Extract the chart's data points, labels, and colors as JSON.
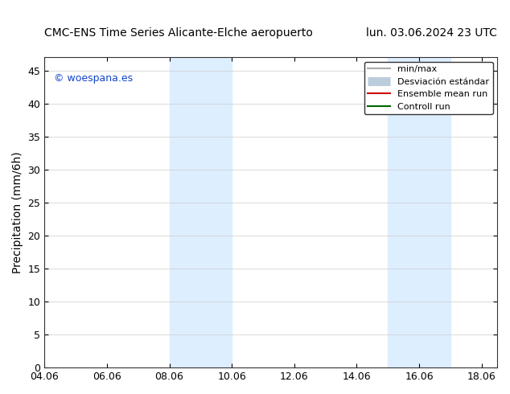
{
  "title_left": "CMC-ENS Time Series Alicante-Elche aeropuerto",
  "title_right": "lun. 03.06.2024 23 UTC",
  "ylabel": "Precipitation (mm/6h)",
  "xlim_left": "2024-06-04 00:00",
  "xlim_right": "2024-06-18 12:00",
  "ylim": [
    0,
    47
  ],
  "yticks": [
    0,
    5,
    10,
    15,
    20,
    25,
    30,
    35,
    40,
    45
  ],
  "xtick_labels": [
    "04.06",
    "06.06",
    "08.06",
    "10.06",
    "12.06",
    "14.06",
    "16.06",
    "18.06"
  ],
  "xtick_positions_days": [
    4,
    6,
    8,
    10,
    12,
    14,
    16,
    18
  ],
  "shaded_bands": [
    {
      "x_start_day": 8,
      "x_end_day": 10
    },
    {
      "x_start_day": 15,
      "x_end_day": 17
    }
  ],
  "inner_band_color": "#ddeeff",
  "watermark_text": "© woespana.es",
  "watermark_color": "#1144cc",
  "legend_items": [
    {
      "label": "min/max",
      "color": "#aaaaaa",
      "lw": 1.5,
      "style": "solid"
    },
    {
      "label": "Desviación estándar",
      "color": "#ccddee",
      "lw": 8,
      "style": "solid"
    },
    {
      "label": "Ensemble mean run",
      "color": "#cc0000",
      "lw": 1.5,
      "style": "solid"
    },
    {
      "label": "Controll run",
      "color": "#006600",
      "lw": 1.5,
      "style": "solid"
    }
  ],
  "background_color": "#ffffff",
  "plot_bg_color": "#ffffff",
  "title_fontsize": 11,
  "tick_fontsize": 9,
  "ylabel_fontsize": 10
}
